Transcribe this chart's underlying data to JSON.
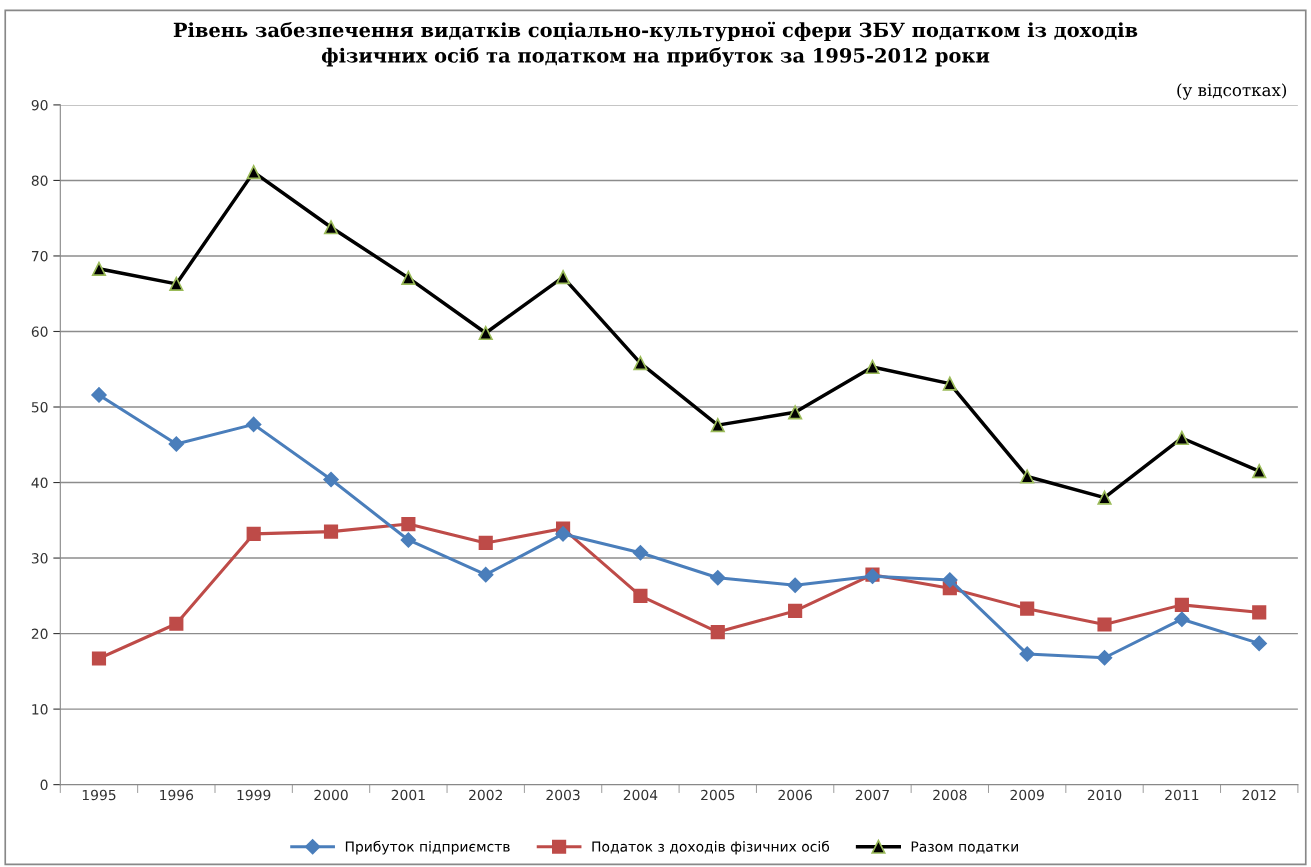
{
  "chart_data": {
    "type": "line",
    "title": "Рівень забезпечення видатків соціально-культурної сфери ЗБУ податком із доходів\nфізичних осіб та податком на прибуток за 1995-2012 роки",
    "annotations": [
      "(у відсотках)"
    ],
    "categories": [
      "1995",
      "1996",
      "1999",
      "2000",
      "2001",
      "2002",
      "2003",
      "2004",
      "2005",
      "2006",
      "2007",
      "2008",
      "2009",
      "2010",
      "2011",
      "2012"
    ],
    "series": [
      {
        "name": "Прибуток підприємств",
        "color": "#4a7ebb",
        "marker": "diamond",
        "values": [
          51.6,
          45.1,
          47.7,
          40.4,
          32.4,
          27.8,
          33.2,
          30.7,
          27.4,
          26.4,
          27.6,
          27.1,
          17.3,
          16.8,
          21.9,
          18.7
        ]
      },
      {
        "name": "Податок з доходів фізичних осіб",
        "color": "#be4b48",
        "marker": "square",
        "values": [
          16.7,
          21.3,
          33.2,
          33.5,
          34.5,
          32.0,
          33.9,
          25.0,
          20.2,
          23.0,
          27.8,
          26.0,
          23.3,
          21.2,
          23.8,
          22.8
        ]
      },
      {
        "name": "Разом податки",
        "color": "#000000",
        "marker": "triangle",
        "values": [
          68.3,
          66.3,
          81.1,
          73.8,
          67.1,
          59.8,
          67.2,
          55.8,
          47.6,
          49.3,
          55.3,
          53.1,
          40.8,
          38.0,
          45.9,
          41.5
        ]
      }
    ],
    "ylim": [
      0,
      90
    ],
    "yticks": [
      0,
      10,
      20,
      30,
      40,
      50,
      60,
      70,
      80,
      90
    ],
    "grid": "y",
    "legend": "bottom",
    "line_style": "solid"
  }
}
